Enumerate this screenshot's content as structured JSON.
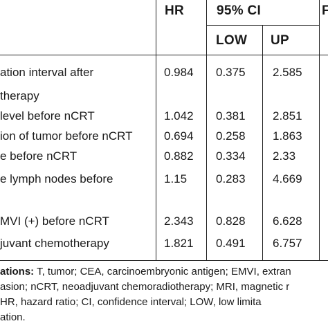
{
  "headers": {
    "hr": "HR",
    "ci": "95% CI",
    "low": "LOW",
    "up": "UP",
    "p_partial": "F"
  },
  "rows": [
    {
      "label_lines": [
        "ation interval after",
        "therapy"
      ],
      "hr": "0.984",
      "low": "0.375",
      "up": "2.585"
    },
    {
      "label_lines": [
        "level before nCRT"
      ],
      "hr": "1.042",
      "low": "0.381",
      "up": "2.851"
    },
    {
      "label_lines": [
        "ion of tumor before nCRT"
      ],
      "hr": "0.694",
      "low": "0.258",
      "up": "1.863"
    },
    {
      "label_lines": [
        "e before nCRT"
      ],
      "hr": "0.882",
      "low": "0.334",
      "up": "2.33"
    },
    {
      "label_lines": [
        "e lymph nodes before"
      ],
      "hr": "1.15",
      "low": "0.283",
      "up": "4.669"
    },
    {
      "label_lines": [
        "MVI (+) before nCRT"
      ],
      "hr": "2.343",
      "low": "0.828",
      "up": "6.628"
    },
    {
      "label_lines": [
        "juvant chemotherapy"
      ],
      "hr": "1.821",
      "low": "0.491",
      "up": "6.757"
    }
  ],
  "footnote": {
    "bold_lead": "ations:",
    "line1_rest": " T, tumor; CEA, carcinoembryonic antigen; EMVI, extran",
    "line2": "asion; nCRT, neoadjuvant chemoradiotherapy; MRI, magnetic r",
    "line3": "HR, hazard ratio; CI, confidence interval; LOW, low limita",
    "line4": "ation."
  }
}
